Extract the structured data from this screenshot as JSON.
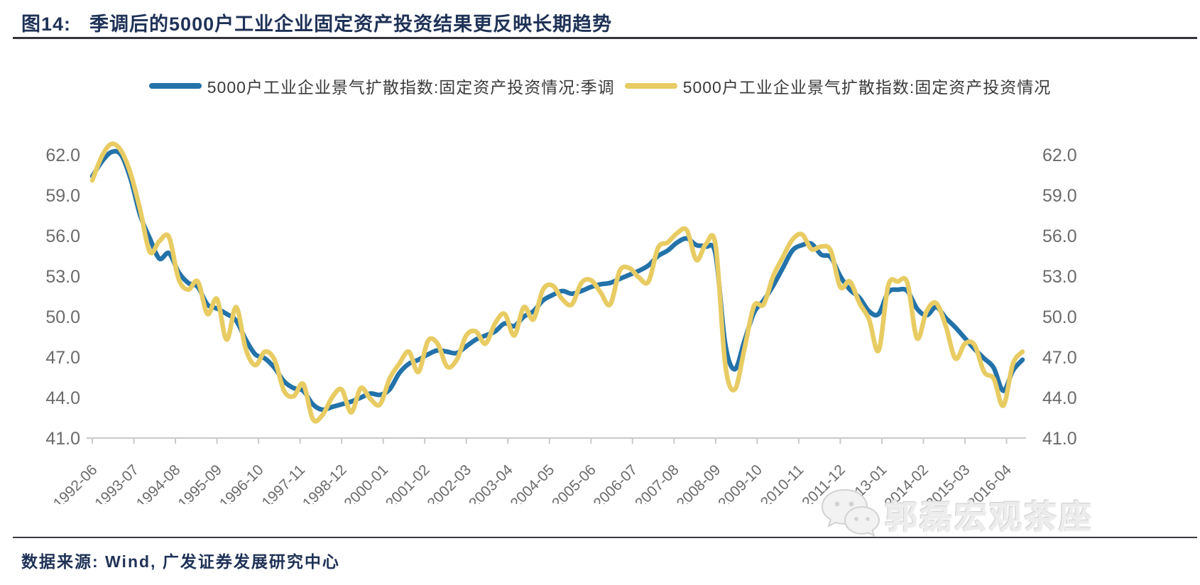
{
  "figure": {
    "label": "图14:",
    "title": "季调后的5000户工业企业固定资产投资结果更反映长期趋势"
  },
  "legend": [
    {
      "label": "5000户工业企业景气扩散指数:固定资产投资情况:季调",
      "color": "#2372A9"
    },
    {
      "label": "5000户工业企业景气扩散指数:固定资产投资情况",
      "color": "#E8CC63"
    }
  ],
  "source": {
    "text": "数据来源: Wind, 广发证券发展研究中心"
  },
  "watermark": {
    "text": "郭磊宏观茶座",
    "icon": "wechat-icon"
  },
  "colors": {
    "title_navy": "#1f3257",
    "axis_label_gray": "#6b6b6b",
    "axis_line_gray": "#c9c9c9",
    "series_sa_blue": "#2372A9",
    "series_nsa_yellow": "#E8CC63",
    "rule_dark": "#33333b",
    "watermark_gray": "#ececec"
  },
  "chart_data": {
    "type": "line",
    "title": "",
    "xlabel": "",
    "ylabel": "",
    "grid": false,
    "legend_position": "top-center",
    "ylim": [
      41.0,
      63.8
    ],
    "y_ticks": [
      62.0,
      59.0,
      56.0,
      53.0,
      50.0,
      47.0,
      44.0,
      41.0
    ],
    "y_tick_labels": [
      "62.0",
      "59.0",
      "56.0",
      "53.0",
      "50.0",
      "47.0",
      "44.0",
      "41.0"
    ],
    "x_tick_labels": [
      "1992-06",
      "1993-07",
      "1994-08",
      "1995-09",
      "1996-10",
      "1997-11",
      "1998-12",
      "2000-01",
      "2001-02",
      "2002-03",
      "2003-04",
      "2004-05",
      "2005-06",
      "2006-07",
      "2007-08",
      "2008-09",
      "2009-10",
      "2010-11",
      "2011-12",
      "2013-01",
      "2014-02",
      "2015-03",
      "2016-04"
    ],
    "x": [
      "1992-06",
      "1992-09",
      "1992-12",
      "1993-03",
      "1993-06",
      "1993-09",
      "1993-12",
      "1994-03",
      "1994-06",
      "1994-09",
      "1994-12",
      "1995-03",
      "1995-06",
      "1995-09",
      "1995-12",
      "1996-03",
      "1996-06",
      "1996-09",
      "1996-12",
      "1997-03",
      "1997-06",
      "1997-09",
      "1997-12",
      "1998-03",
      "1998-06",
      "1998-09",
      "1998-12",
      "1999-03",
      "1999-06",
      "1999-09",
      "1999-12",
      "2000-03",
      "2000-06",
      "2000-09",
      "2000-12",
      "2001-03",
      "2001-06",
      "2001-09",
      "2001-12",
      "2002-03",
      "2002-06",
      "2002-09",
      "2002-12",
      "2003-03",
      "2003-06",
      "2003-09",
      "2003-12",
      "2004-03",
      "2004-06",
      "2004-09",
      "2004-12",
      "2005-03",
      "2005-06",
      "2005-09",
      "2005-12",
      "2006-03",
      "2006-06",
      "2006-09",
      "2006-12",
      "2007-03",
      "2007-06",
      "2007-09",
      "2007-12",
      "2008-03",
      "2008-06",
      "2008-09",
      "2008-12",
      "2009-03",
      "2009-06",
      "2009-09",
      "2009-12",
      "2010-03",
      "2010-06",
      "2010-09",
      "2010-12",
      "2011-03",
      "2011-06",
      "2011-09",
      "2011-12",
      "2012-03",
      "2012-06",
      "2012-09",
      "2012-12",
      "2013-03",
      "2013-06",
      "2013-09",
      "2013-12",
      "2014-03",
      "2014-06",
      "2014-09",
      "2014-12",
      "2015-03",
      "2015-06",
      "2015-09",
      "2015-12",
      "2016-03",
      "2016-06",
      "2016-09"
    ],
    "series": [
      {
        "name": "5000户工业企业景气扩散指数:固定资产投资情况:季调",
        "color": "#2372A9",
        "values": [
          60.4,
          61.5,
          62.2,
          62.0,
          60.2,
          57.5,
          55.8,
          54.3,
          54.7,
          53.3,
          52.5,
          52.2,
          50.9,
          50.6,
          50.2,
          49.7,
          48.3,
          47.2,
          46.9,
          46.2,
          45.2,
          44.7,
          44.5,
          43.5,
          43.1,
          43.3,
          43.5,
          43.7,
          44.0,
          44.3,
          44.2,
          44.6,
          45.8,
          46.5,
          46.8,
          47.2,
          47.5,
          47.4,
          47.3,
          47.8,
          48.3,
          48.6,
          48.9,
          49.5,
          49.3,
          50.0,
          50.4,
          51.2,
          51.6,
          51.9,
          51.7,
          51.9,
          52.2,
          52.4,
          52.5,
          52.8,
          53.1,
          53.4,
          53.8,
          54.5,
          54.9,
          55.5,
          55.8,
          55.3,
          55.2,
          54.6,
          48.0,
          46.1,
          48.2,
          50.3,
          51.2,
          52.3,
          53.6,
          54.9,
          55.3,
          55.4,
          54.6,
          54.4,
          53.0,
          52.0,
          51.4,
          50.4,
          50.2,
          51.8,
          52.0,
          51.9,
          50.6,
          50.1,
          50.7,
          49.9,
          49.2,
          48.4,
          47.6,
          46.9,
          46.2,
          44.5,
          46.0,
          46.8
        ]
      },
      {
        "name": "5000户工业企业景气扩散指数:固定资产投资情况",
        "color": "#E8CC63",
        "values": [
          60.1,
          61.9,
          62.8,
          62.3,
          60.6,
          57.9,
          54.8,
          55.6,
          55.9,
          52.8,
          52.0,
          52.6,
          50.2,
          51.3,
          48.3,
          50.7,
          47.6,
          46.4,
          47.4,
          46.8,
          44.5,
          44.1,
          45.0,
          42.4,
          42.7,
          44.0,
          44.6,
          42.9,
          44.7,
          43.9,
          43.5,
          45.4,
          46.5,
          47.4,
          45.9,
          48.2,
          48.0,
          46.3,
          46.8,
          48.6,
          48.9,
          48.0,
          49.5,
          50.2,
          48.6,
          50.7,
          49.8,
          52.0,
          52.3,
          51.3,
          50.9,
          52.5,
          52.7,
          51.8,
          50.9,
          53.4,
          53.6,
          52.9,
          52.6,
          55.1,
          55.5,
          56.2,
          56.4,
          54.2,
          55.4,
          55.3,
          46.5,
          44.6,
          47.6,
          50.8,
          50.9,
          53.0,
          54.4,
          55.7,
          56.1,
          55.0,
          55.2,
          54.9,
          52.2,
          52.6,
          51.0,
          49.8,
          47.5,
          52.3,
          52.6,
          52.5,
          48.4,
          50.4,
          51.0,
          49.3,
          46.9,
          48.0,
          47.9,
          45.9,
          45.4,
          43.4,
          46.5,
          47.4
        ]
      }
    ]
  }
}
